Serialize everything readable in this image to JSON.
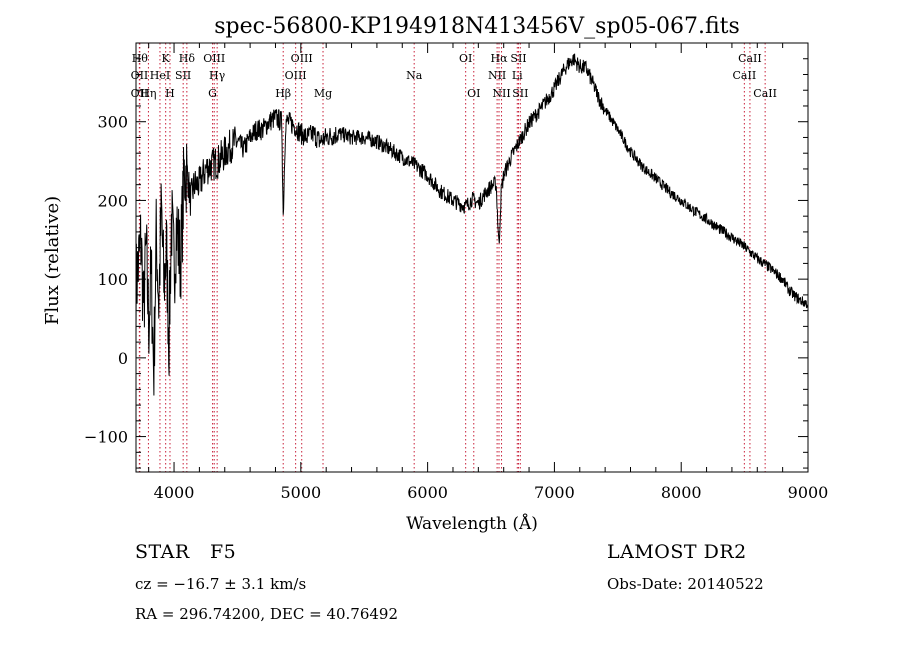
{
  "chart_data": {
    "type": "line",
    "title": "spec-56800-KP194918N413456V_sp05-067.fits",
    "xlabel": "Wavelength (Å)",
    "ylabel": "Flux (relative)",
    "xlim": [
      3700,
      9000
    ],
    "ylim": [
      -145,
      400
    ],
    "xticks": [
      4000,
      5000,
      6000,
      7000,
      8000,
      9000
    ],
    "yticks": [
      -100,
      0,
      100,
      200,
      300
    ],
    "series": [
      {
        "x": [
          3700,
          3720,
          3740,
          3760,
          3780,
          3800,
          3820,
          3840,
          3860,
          3880,
          3900,
          3920,
          3940,
          3960,
          3980,
          4000,
          4020,
          4050,
          4080,
          4100,
          4130,
          4160,
          4200,
          4250,
          4300,
          4350,
          4400,
          4450,
          4500,
          4550,
          4600,
          4650,
          4700,
          4750,
          4800,
          4850,
          4861,
          4880,
          4900,
          4950,
          5000,
          5050,
          5100,
          5150,
          5200,
          5300,
          5400,
          5500,
          5600,
          5700,
          5800,
          5900,
          6000,
          6100,
          6200,
          6300,
          6350,
          6400,
          6450,
          6500,
          6540,
          6563,
          6580,
          6600,
          6650,
          6700,
          6800,
          6900,
          7000,
          7050,
          7100,
          7150,
          7200,
          7250,
          7300,
          7350,
          7400,
          7500,
          7600,
          7700,
          7800,
          7900,
          8000,
          8100,
          8200,
          8300,
          8400,
          8500,
          8600,
          8700,
          8800,
          8850,
          8900,
          8950,
          8980,
          9000
        ],
        "y": [
          90,
          120,
          150,
          60,
          140,
          40,
          110,
          -20,
          160,
          70,
          190,
          90,
          140,
          20,
          180,
          110,
          170,
          120,
          230,
          240,
          200,
          220,
          220,
          240,
          245,
          250,
          260,
          270,
          275,
          265,
          280,
          290,
          290,
          300,
          305,
          300,
          180,
          300,
          300,
          295,
          285,
          280,
          285,
          275,
          280,
          285,
          280,
          280,
          275,
          265,
          255,
          245,
          232,
          212,
          200,
          192,
          202,
          196,
          208,
          218,
          222,
          140,
          212,
          232,
          252,
          268,
          298,
          318,
          342,
          358,
          372,
          380,
          370,
          368,
          350,
          330,
          315,
          290,
          262,
          242,
          228,
          212,
          200,
          187,
          176,
          164,
          153,
          141,
          126,
          114,
          100,
          86,
          78,
          72,
          70,
          68
        ]
      }
    ],
    "line_markers": [
      {
        "x": 3730,
        "label": "Hθ",
        "row": 0
      },
      {
        "x": 3727,
        "label": "OII",
        "row": 1
      },
      {
        "x": 3727,
        "label": "OII",
        "row": 2
      },
      {
        "x": 3798,
        "label": "Hη",
        "row": 2
      },
      {
        "x": 3889,
        "label": "HeI",
        "row": 1
      },
      {
        "x": 3934,
        "label": "K",
        "row": 0
      },
      {
        "x": 3968,
        "label": "H",
        "row": 2
      },
      {
        "x": 4072,
        "label": "SII",
        "row": 1
      },
      {
        "x": 4101,
        "label": "Hδ",
        "row": 0
      },
      {
        "x": 4317,
        "label": "OIII",
        "row": 0
      },
      {
        "x": 4340,
        "label": "Hγ",
        "row": 1
      },
      {
        "x": 4304,
        "label": "G",
        "row": 2
      },
      {
        "x": 4861,
        "label": "Hβ",
        "row": 2
      },
      {
        "x": 4959,
        "label": "OIII",
        "row": 1
      },
      {
        "x": 5007,
        "label": "OIII",
        "row": 0
      },
      {
        "x": 5175,
        "label": "Mg",
        "row": 2
      },
      {
        "x": 5894,
        "label": "Na",
        "row": 1
      },
      {
        "x": 6300,
        "label": "OI",
        "row": 0
      },
      {
        "x": 6364,
        "label": "OI",
        "row": 2
      },
      {
        "x": 6548,
        "label": "NII",
        "row": 1
      },
      {
        "x": 6583,
        "label": "NII",
        "row": 2
      },
      {
        "x": 6563,
        "label": "Hα",
        "row": 0
      },
      {
        "x": 6707,
        "label": "Li",
        "row": 1
      },
      {
        "x": 6717,
        "label": "SII",
        "row": 0
      },
      {
        "x": 6731,
        "label": "SII",
        "row": 2
      },
      {
        "x": 8498,
        "label": "CaII",
        "row": 1
      },
      {
        "x": 8542,
        "label": "CaII",
        "row": 0
      },
      {
        "x": 8662,
        "label": "CaII",
        "row": 2
      }
    ]
  },
  "info": {
    "class": "STAR",
    "subclass": "F5",
    "survey": "LAMOST DR2",
    "cz": "cz = −16.7 ± 3.1 km/s",
    "obs_date": "Obs-Date: 20140522",
    "coords": "RA = 296.74200, DEC =  40.76492"
  }
}
